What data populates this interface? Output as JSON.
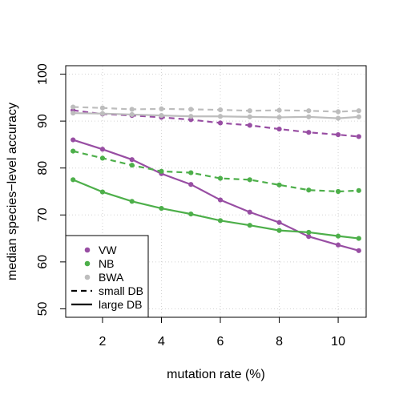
{
  "chart_data": {
    "type": "line",
    "title": "",
    "xlabel": "mutation rate (%)",
    "ylabel": "median species−level accuracy",
    "xlim": [
      0.75,
      10.95
    ],
    "ylim": [
      48.2,
      101.8
    ],
    "xticks": [
      2,
      4,
      6,
      8,
      10
    ],
    "yticks": [
      50,
      60,
      70,
      80,
      90,
      100
    ],
    "grid": true,
    "legend_position": "bottom-left",
    "x": [
      1,
      2,
      3,
      4,
      5,
      6,
      7,
      8,
      9,
      10,
      10.7
    ],
    "series": [
      {
        "name": "VW",
        "db": "small DB",
        "color": "#984ea3",
        "dashed": true,
        "values": [
          92.3,
          91.5,
          91.2,
          90.8,
          90.3,
          89.6,
          89.1,
          88.3,
          87.6,
          87.1,
          86.7
        ]
      },
      {
        "name": "VW",
        "db": "large DB",
        "color": "#984ea3",
        "dashed": false,
        "values": [
          86.0,
          84.0,
          81.8,
          78.8,
          76.5,
          73.2,
          70.6,
          68.4,
          65.4,
          63.6,
          62.4
        ]
      },
      {
        "name": "NB",
        "db": "small DB",
        "color": "#4daf4a",
        "dashed": true,
        "values": [
          83.6,
          82.1,
          80.6,
          79.3,
          79.0,
          77.8,
          77.5,
          76.4,
          75.3,
          75.0,
          75.2
        ]
      },
      {
        "name": "NB",
        "db": "large DB",
        "color": "#4daf4a",
        "dashed": false,
        "values": [
          77.5,
          74.9,
          72.9,
          71.4,
          70.2,
          68.8,
          67.8,
          66.7,
          66.3,
          65.5,
          65.0
        ]
      },
      {
        "name": "BWA",
        "db": "small DB",
        "color": "#bdbdbd",
        "dashed": true,
        "values": [
          93.0,
          92.8,
          92.5,
          92.6,
          92.5,
          92.4,
          92.2,
          92.3,
          92.2,
          92.0,
          92.2
        ]
      },
      {
        "name": "BWA",
        "db": "large DB",
        "color": "#bdbdbd",
        "dashed": false,
        "values": [
          91.7,
          91.6,
          91.4,
          91.2,
          91.0,
          91.0,
          90.9,
          90.8,
          90.9,
          90.6,
          90.9
        ]
      }
    ],
    "legend": [
      {
        "label": "VW",
        "kind": "point",
        "color": "#984ea3"
      },
      {
        "label": "NB",
        "kind": "point",
        "color": "#4daf4a"
      },
      {
        "label": "BWA",
        "kind": "point",
        "color": "#bdbdbd"
      },
      {
        "label": "small DB",
        "kind": "dashed-line",
        "color": "#000000"
      },
      {
        "label": "large DB",
        "kind": "solid-line",
        "color": "#000000"
      }
    ]
  }
}
